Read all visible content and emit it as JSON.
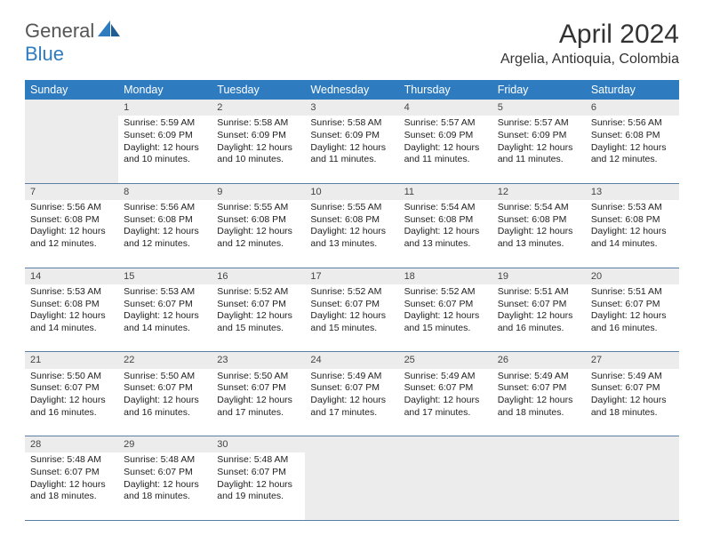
{
  "brand": {
    "part1": "General",
    "part2": "Blue"
  },
  "title": "April 2024",
  "location": "Argelia, Antioquia, Colombia",
  "colors": {
    "header_bg": "#2f7bbf",
    "header_fg": "#ffffff",
    "daynum_bg": "#ececec",
    "rule": "#5a7ea4",
    "logo_blue": "#2f7bbf",
    "text": "#222222"
  },
  "weekdays": [
    "Sunday",
    "Monday",
    "Tuesday",
    "Wednesday",
    "Thursday",
    "Friday",
    "Saturday"
  ],
  "weeks": [
    {
      "nums": [
        "",
        "1",
        "2",
        "3",
        "4",
        "5",
        "6"
      ],
      "cells": [
        null,
        {
          "sr": "Sunrise: 5:59 AM",
          "ss": "Sunset: 6:09 PM",
          "d1": "Daylight: 12 hours",
          "d2": "and 10 minutes."
        },
        {
          "sr": "Sunrise: 5:58 AM",
          "ss": "Sunset: 6:09 PM",
          "d1": "Daylight: 12 hours",
          "d2": "and 10 minutes."
        },
        {
          "sr": "Sunrise: 5:58 AM",
          "ss": "Sunset: 6:09 PM",
          "d1": "Daylight: 12 hours",
          "d2": "and 11 minutes."
        },
        {
          "sr": "Sunrise: 5:57 AM",
          "ss": "Sunset: 6:09 PM",
          "d1": "Daylight: 12 hours",
          "d2": "and 11 minutes."
        },
        {
          "sr": "Sunrise: 5:57 AM",
          "ss": "Sunset: 6:09 PM",
          "d1": "Daylight: 12 hours",
          "d2": "and 11 minutes."
        },
        {
          "sr": "Sunrise: 5:56 AM",
          "ss": "Sunset: 6:08 PM",
          "d1": "Daylight: 12 hours",
          "d2": "and 12 minutes."
        }
      ]
    },
    {
      "nums": [
        "7",
        "8",
        "9",
        "10",
        "11",
        "12",
        "13"
      ],
      "cells": [
        {
          "sr": "Sunrise: 5:56 AM",
          "ss": "Sunset: 6:08 PM",
          "d1": "Daylight: 12 hours",
          "d2": "and 12 minutes."
        },
        {
          "sr": "Sunrise: 5:56 AM",
          "ss": "Sunset: 6:08 PM",
          "d1": "Daylight: 12 hours",
          "d2": "and 12 minutes."
        },
        {
          "sr": "Sunrise: 5:55 AM",
          "ss": "Sunset: 6:08 PM",
          "d1": "Daylight: 12 hours",
          "d2": "and 12 minutes."
        },
        {
          "sr": "Sunrise: 5:55 AM",
          "ss": "Sunset: 6:08 PM",
          "d1": "Daylight: 12 hours",
          "d2": "and 13 minutes."
        },
        {
          "sr": "Sunrise: 5:54 AM",
          "ss": "Sunset: 6:08 PM",
          "d1": "Daylight: 12 hours",
          "d2": "and 13 minutes."
        },
        {
          "sr": "Sunrise: 5:54 AM",
          "ss": "Sunset: 6:08 PM",
          "d1": "Daylight: 12 hours",
          "d2": "and 13 minutes."
        },
        {
          "sr": "Sunrise: 5:53 AM",
          "ss": "Sunset: 6:08 PM",
          "d1": "Daylight: 12 hours",
          "d2": "and 14 minutes."
        }
      ]
    },
    {
      "nums": [
        "14",
        "15",
        "16",
        "17",
        "18",
        "19",
        "20"
      ],
      "cells": [
        {
          "sr": "Sunrise: 5:53 AM",
          "ss": "Sunset: 6:08 PM",
          "d1": "Daylight: 12 hours",
          "d2": "and 14 minutes."
        },
        {
          "sr": "Sunrise: 5:53 AM",
          "ss": "Sunset: 6:07 PM",
          "d1": "Daylight: 12 hours",
          "d2": "and 14 minutes."
        },
        {
          "sr": "Sunrise: 5:52 AM",
          "ss": "Sunset: 6:07 PM",
          "d1": "Daylight: 12 hours",
          "d2": "and 15 minutes."
        },
        {
          "sr": "Sunrise: 5:52 AM",
          "ss": "Sunset: 6:07 PM",
          "d1": "Daylight: 12 hours",
          "d2": "and 15 minutes."
        },
        {
          "sr": "Sunrise: 5:52 AM",
          "ss": "Sunset: 6:07 PM",
          "d1": "Daylight: 12 hours",
          "d2": "and 15 minutes."
        },
        {
          "sr": "Sunrise: 5:51 AM",
          "ss": "Sunset: 6:07 PM",
          "d1": "Daylight: 12 hours",
          "d2": "and 16 minutes."
        },
        {
          "sr": "Sunrise: 5:51 AM",
          "ss": "Sunset: 6:07 PM",
          "d1": "Daylight: 12 hours",
          "d2": "and 16 minutes."
        }
      ]
    },
    {
      "nums": [
        "21",
        "22",
        "23",
        "24",
        "25",
        "26",
        "27"
      ],
      "cells": [
        {
          "sr": "Sunrise: 5:50 AM",
          "ss": "Sunset: 6:07 PM",
          "d1": "Daylight: 12 hours",
          "d2": "and 16 minutes."
        },
        {
          "sr": "Sunrise: 5:50 AM",
          "ss": "Sunset: 6:07 PM",
          "d1": "Daylight: 12 hours",
          "d2": "and 16 minutes."
        },
        {
          "sr": "Sunrise: 5:50 AM",
          "ss": "Sunset: 6:07 PM",
          "d1": "Daylight: 12 hours",
          "d2": "and 17 minutes."
        },
        {
          "sr": "Sunrise: 5:49 AM",
          "ss": "Sunset: 6:07 PM",
          "d1": "Daylight: 12 hours",
          "d2": "and 17 minutes."
        },
        {
          "sr": "Sunrise: 5:49 AM",
          "ss": "Sunset: 6:07 PM",
          "d1": "Daylight: 12 hours",
          "d2": "and 17 minutes."
        },
        {
          "sr": "Sunrise: 5:49 AM",
          "ss": "Sunset: 6:07 PM",
          "d1": "Daylight: 12 hours",
          "d2": "and 18 minutes."
        },
        {
          "sr": "Sunrise: 5:49 AM",
          "ss": "Sunset: 6:07 PM",
          "d1": "Daylight: 12 hours",
          "d2": "and 18 minutes."
        }
      ]
    },
    {
      "nums": [
        "28",
        "29",
        "30",
        "",
        "",
        "",
        ""
      ],
      "cells": [
        {
          "sr": "Sunrise: 5:48 AM",
          "ss": "Sunset: 6:07 PM",
          "d1": "Daylight: 12 hours",
          "d2": "and 18 minutes."
        },
        {
          "sr": "Sunrise: 5:48 AM",
          "ss": "Sunset: 6:07 PM",
          "d1": "Daylight: 12 hours",
          "d2": "and 18 minutes."
        },
        {
          "sr": "Sunrise: 5:48 AM",
          "ss": "Sunset: 6:07 PM",
          "d1": "Daylight: 12 hours",
          "d2": "and 19 minutes."
        },
        null,
        null,
        null,
        null
      ]
    }
  ]
}
